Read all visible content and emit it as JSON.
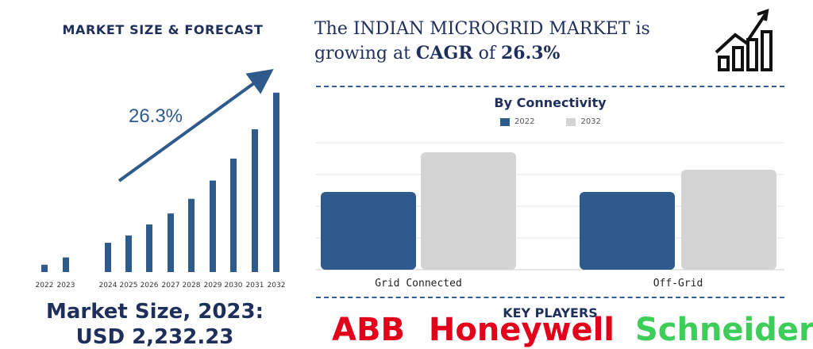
{
  "left_panel": {
    "title": "MARKET SIZE & FORECAST",
    "market_size_line1": "Market Size, 2023:",
    "market_size_line2": "USD 2,232.23"
  },
  "headline": {
    "line1": "The INDIAN MICROGRID MARKET is",
    "line2_prefix": "growing at ",
    "cagr_word": "CAGR",
    "line2_mid": " of ",
    "cagr_value": "26.3%"
  },
  "icons": {
    "header": "growth-chart-icon"
  },
  "colors": {
    "navy": "#1f2f5c",
    "series_2022": "#2e5b8c",
    "series_2032": "#d4d4d4"
  },
  "section_titles": {
    "connectivity": "By Connectivity",
    "players": "KEY PLAYERS"
  },
  "key_players": {
    "abb": "ABB",
    "honeywell": "Honeywell",
    "schneider": "Schneider"
  },
  "chart_data": [
    {
      "type": "bar",
      "title": "MARKET SIZE & FORECAST",
      "annotation": "26.3%",
      "categories": [
        "2022",
        "2023",
        "2024",
        "2025",
        "2026",
        "2027",
        "2028",
        "2029",
        "2030",
        "2031",
        "2032"
      ],
      "values": [
        1,
        2,
        4,
        5,
        6.5,
        8,
        10,
        12.5,
        15.5,
        19.5,
        24.5
      ],
      "value_note": "relative bar heights",
      "ylim": [
        0,
        26
      ]
    },
    {
      "type": "bar",
      "title": "By Connectivity",
      "categories": [
        "Grid Connected",
        "Off-Grid"
      ],
      "series": [
        {
          "name": "2022",
          "values": [
            49,
            49
          ]
        },
        {
          "name": "2032",
          "values": [
            74,
            63
          ]
        }
      ],
      "ylim": [
        0,
        80
      ],
      "grid": true,
      "legend": "top-center"
    }
  ]
}
